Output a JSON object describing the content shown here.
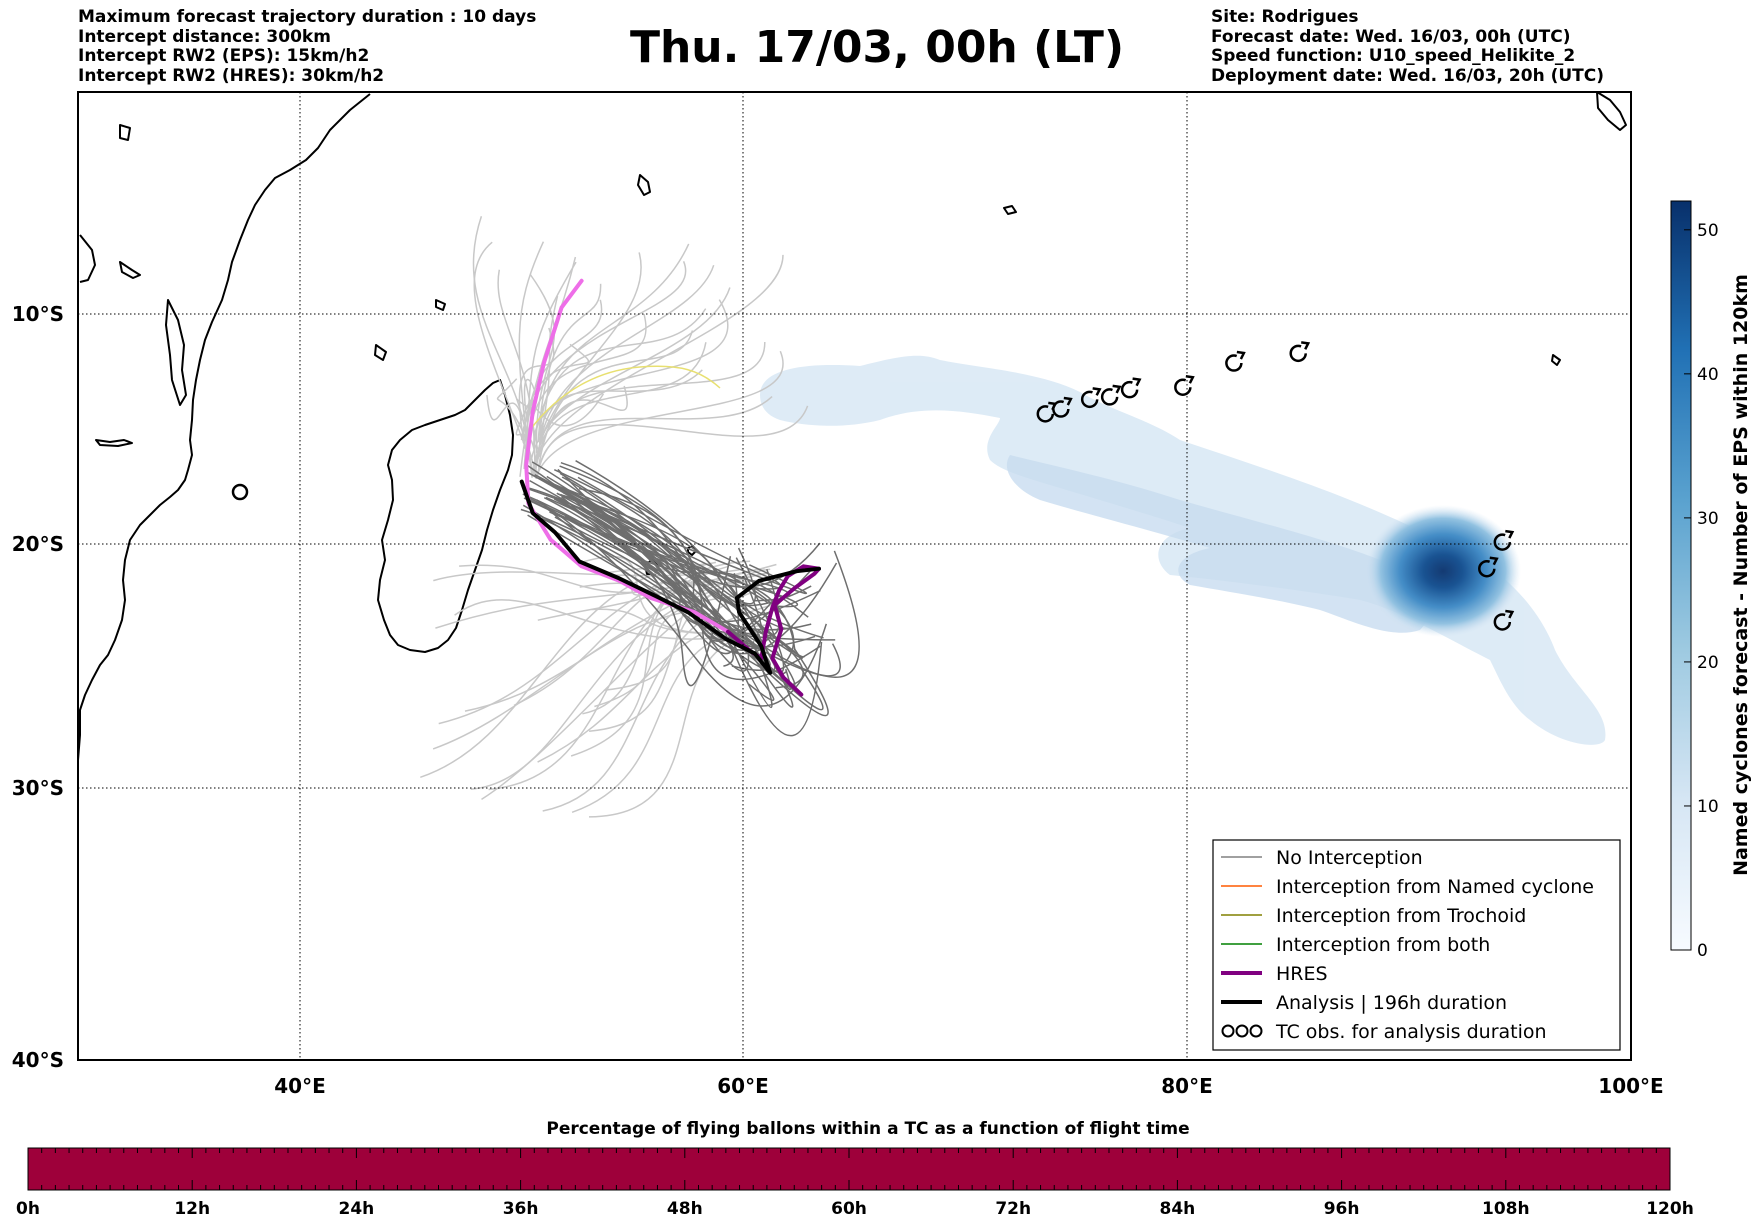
{
  "header": {
    "title": "Thu. 17/03, 00h (LT)",
    "left_lines": [
      "Maximum forecast trajectory duration : 10 days",
      "Intercept distance: 300km",
      "Intercept RW2 (EPS):  15km/h2",
      "Intercept RW2 (HRES): 30km/h2"
    ],
    "right_lines": [
      "Site: Rodrigues",
      "Forecast date: Wed. 16/03, 00h (UTC)",
      "Speed function: U10_speed_Helikite_2",
      "Deployment date: Wed. 16/03, 20h (UTC)"
    ]
  },
  "map": {
    "lon_range": [
      30,
      100
    ],
    "lat_range": [
      -40,
      0
    ],
    "lon_ticks": [
      "40°E",
      "60°E",
      "80°E",
      "100°E"
    ],
    "lat_ticks": [
      "10°S",
      "20°S",
      "30°S",
      "40°S"
    ],
    "gridlines": true
  },
  "legend": {
    "placement": "lower-right",
    "items": [
      {
        "label": "No Interception",
        "color": "#808080"
      },
      {
        "label": "Interception from Named cyclone",
        "color": "#ff5a00"
      },
      {
        "label": "Interception from Trochoid",
        "color": "#808000"
      },
      {
        "label": "Interception from both",
        "color": "#008000"
      },
      {
        "label": "HRES",
        "color": "#800080"
      },
      {
        "label": "Analysis | 196h duration",
        "color": "#000000"
      },
      {
        "label": "TC obs. for analysis duration",
        "color": "#000000"
      }
    ]
  },
  "colorbar_right": {
    "label": "Named cyclones forecast - Number of EPS within 120km",
    "range": [
      0,
      52
    ],
    "ticks": [
      "0",
      "10",
      "20",
      "30",
      "40",
      "50"
    ],
    "colormap": "Blues"
  },
  "colorbar_bottom": {
    "title": "Percentage of flying ballons within a TC as a function of flight time",
    "ticks": [
      "0h",
      "12h",
      "24h",
      "36h",
      "48h",
      "60h",
      "72h",
      "84h",
      "96h",
      "108h",
      "120h"
    ],
    "fill_color": "#9e003a"
  },
  "tc_obs": [
    [
      73.6,
      -13.3
    ],
    [
      74.3,
      -13.1
    ],
    [
      75.6,
      -12.7
    ],
    [
      76.5,
      -12.6
    ],
    [
      77.4,
      -12.3
    ],
    [
      79.8,
      -12.2
    ],
    [
      82.1,
      -11.2
    ],
    [
      85.0,
      -10.8
    ],
    [
      93.5,
      -19.7
    ],
    [
      94.2,
      -18.6
    ],
    [
      94.2,
      -21.9
    ]
  ],
  "analysis_track": [
    [
      50.0,
      -16.1
    ],
    [
      50.5,
      -17.4
    ],
    [
      51.5,
      -18.2
    ],
    [
      52.6,
      -19.4
    ],
    [
      54.4,
      -20.1
    ],
    [
      56.2,
      -20.9
    ],
    [
      57.5,
      -21.5
    ],
    [
      59.2,
      -22.6
    ],
    [
      60.5,
      -23.2
    ],
    [
      61.2,
      -24.0
    ],
    [
      60.8,
      -22.9
    ],
    [
      59.8,
      -21.5
    ],
    [
      59.7,
      -20.9
    ],
    [
      60.7,
      -20.2
    ],
    [
      62.4,
      -19.8
    ],
    [
      63.4,
      -19.7
    ]
  ],
  "hres_track": [
    [
      52.7,
      -7.8
    ],
    [
      51.8,
      -8.9
    ],
    [
      51.0,
      -11.2
    ],
    [
      50.5,
      -13.2
    ],
    [
      50.2,
      -15.4
    ],
    [
      50.3,
      -17.0
    ],
    [
      51.3,
      -18.5
    ],
    [
      52.7,
      -19.6
    ],
    [
      54.4,
      -20.2
    ],
    [
      55.8,
      -20.9
    ],
    [
      57.8,
      -21.5
    ],
    [
      59.3,
      -22.3
    ],
    [
      60.3,
      -23.1
    ],
    [
      60.8,
      -23.4
    ],
    [
      61.0,
      -22.3
    ],
    [
      61.3,
      -21.3
    ],
    [
      61.6,
      -20.6
    ],
    [
      62.0,
      -20.0
    ],
    [
      62.7,
      -19.6
    ],
    [
      63.4,
      -19.7
    ],
    [
      63.2,
      -19.9
    ],
    [
      62.3,
      -20.5
    ],
    [
      61.4,
      -21.2
    ],
    [
      61.7,
      -22.2
    ],
    [
      61.3,
      -23.4
    ],
    [
      61.8,
      -24.2
    ],
    [
      62.6,
      -24.9
    ]
  ]
}
